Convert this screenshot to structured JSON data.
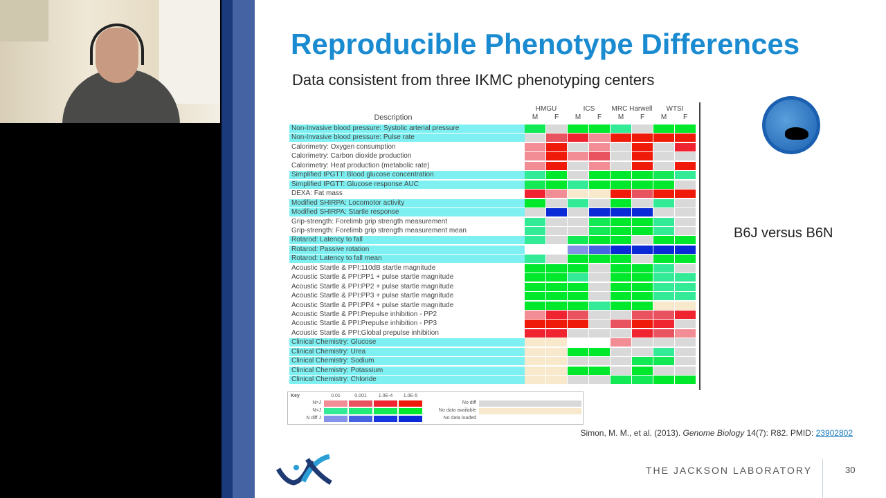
{
  "slide": {
    "title": "Reproducible Phenotype Differences",
    "subtitle": "Data consistent from three IKMC phenotyping centers",
    "side_label": "B6J versus B6N",
    "citation_prefix": "Simon, M. M., et al. (2013). ",
    "citation_journal": "Genome Biology",
    "citation_suffix": " 14(7): R82. PMID: ",
    "pmid_link": "23902802",
    "org": "THE JACKSON LABORATORY",
    "page_number": "30"
  },
  "chart_data": {
    "type": "heatmap",
    "row_header": "Description",
    "centers": [
      "HMGU",
      "ICS",
      "MRC Harwell",
      "WTSI"
    ],
    "columns": [
      "M",
      "F",
      "M",
      "F",
      "M",
      "F",
      "M",
      "F"
    ],
    "rows": [
      {
        "label": "Non-Invasive blood pressure: Systolic arterial pressure",
        "hl": true,
        "cells": [
          "g3",
          "n",
          "g4",
          "g4",
          "g1",
          "n",
          "g4",
          "g4"
        ]
      },
      {
        "label": "Non-Invasive blood pressure: Pulse rate",
        "hl": true,
        "cells": [
          "n",
          "r2",
          "r3",
          "r1",
          "r4",
          "r4",
          "r4",
          "r4"
        ]
      },
      {
        "label": "Calorimetry: Oxygen consumption",
        "hl": false,
        "cells": [
          "r1",
          "r4",
          "n",
          "r1",
          "n",
          "r4",
          "n",
          "r3"
        ]
      },
      {
        "label": "Calorimetry: Carbon dioxide production",
        "hl": false,
        "cells": [
          "r1",
          "r4",
          "r1",
          "r2",
          "n",
          "r4",
          "n",
          "n"
        ]
      },
      {
        "label": "Calorimetry: Heat production (metabolic rate)",
        "hl": false,
        "cells": [
          "r1",
          "r4",
          "n",
          "r1",
          "n",
          "r4",
          "n",
          "r4"
        ]
      },
      {
        "label": "Simplified IPGTT: Blood glucose concentration",
        "hl": true,
        "cells": [
          "g1",
          "g4",
          "n",
          "g4",
          "g4",
          "g4",
          "g3",
          "g1"
        ]
      },
      {
        "label": "Simplified IPGTT: Glucose response AUC",
        "hl": true,
        "cells": [
          "g3",
          "g4",
          "g1",
          "g4",
          "g4",
          "g4",
          "g4",
          "n"
        ]
      },
      {
        "label": "DEXA: Fat mass",
        "hl": false,
        "cells": [
          "r3",
          "r1",
          "y",
          "y",
          "r4",
          "r2",
          "r4",
          "r4"
        ]
      },
      {
        "label": "Modified SHIRPA: Locomotor activity",
        "hl": true,
        "cells": [
          "g4",
          "n",
          "g1",
          "n",
          "g4",
          "n",
          "g1",
          "n"
        ]
      },
      {
        "label": "Modified SHIRPA: Startle response",
        "hl": true,
        "cells": [
          "n",
          "b4",
          "n",
          "b4",
          "b4",
          "b4",
          "n",
          "n"
        ]
      },
      {
        "label": "Grip-strength: Forelimb grip strength measurement",
        "hl": false,
        "cells": [
          "g1",
          "n",
          "n",
          "g3",
          "g4",
          "g4",
          "g1",
          "n"
        ]
      },
      {
        "label": "Grip-strength: Forelimb grip strength measurement mean",
        "hl": false,
        "cells": [
          "g1",
          "n",
          "n",
          "g3",
          "g4",
          "g4",
          "g1",
          "n"
        ]
      },
      {
        "label": "Rotarod: Latency to fall",
        "hl": true,
        "cells": [
          "g1",
          "n",
          "g3",
          "g4",
          "g4",
          "n",
          "g4",
          "g4"
        ]
      },
      {
        "label": "Rotarod: Passive rotation",
        "hl": true,
        "cells": [
          "w",
          "w",
          "b1",
          "b2",
          "b4",
          "b4",
          "b4",
          "b4"
        ]
      },
      {
        "label": "Rotarod: Latency to fall mean",
        "hl": true,
        "cells": [
          "g1",
          "n",
          "g4",
          "g4",
          "g4",
          "n",
          "g4",
          "g4"
        ]
      },
      {
        "label": "Acoustic Startle & PPI:110dB startle magnitude",
        "hl": false,
        "cells": [
          "g4",
          "g4",
          "g4",
          "n",
          "g4",
          "g4",
          "g1",
          "n"
        ]
      },
      {
        "label": "Acoustic Startle & PPI:PP1 + pulse startle magnitude",
        "hl": false,
        "cells": [
          "g4",
          "g4",
          "g1",
          "n",
          "g4",
          "g4",
          "g1",
          "g1"
        ]
      },
      {
        "label": "Acoustic Startle & PPI:PP2 + pulse startle magnitude",
        "hl": false,
        "cells": [
          "g4",
          "g4",
          "g4",
          "n",
          "g4",
          "g4",
          "g1",
          "g1"
        ]
      },
      {
        "label": "Acoustic Startle & PPI:PP3 + pulse startle magnitude",
        "hl": false,
        "cells": [
          "g4",
          "g4",
          "g4",
          "n",
          "g4",
          "g4",
          "g1",
          "g1"
        ]
      },
      {
        "label": "Acoustic Startle & PPI:PP4 + pulse startle magnitude",
        "hl": false,
        "cells": [
          "g4",
          "g4",
          "g4",
          "g1",
          "g4",
          "g4",
          "y",
          "y"
        ]
      },
      {
        "label": "Acoustic Startle & PPI:Prepulse inhibition - PP2",
        "hl": false,
        "cells": [
          "r1",
          "r3",
          "r2",
          "n",
          "n",
          "r2",
          "r2",
          "r3"
        ]
      },
      {
        "label": "Acoustic Startle & PPI:Prepulse inhibition - PP3",
        "hl": false,
        "cells": [
          "r4",
          "r4",
          "r4",
          "n",
          "r2",
          "r4",
          "r3",
          "n"
        ]
      },
      {
        "label": "Acoustic Startle & PPI:Global prepulse inhibition",
        "hl": false,
        "cells": [
          "r3",
          "r3",
          "n",
          "n",
          "n",
          "r3",
          "r2",
          "r1"
        ]
      },
      {
        "label": "Clinical Chemistry: Glucose",
        "hl": true,
        "cells": [
          "y",
          "y",
          "w",
          "w",
          "r1",
          "n",
          "n",
          "n"
        ]
      },
      {
        "label": "Clinical Chemistry: Urea",
        "hl": true,
        "cells": [
          "y",
          "y",
          "g4",
          "g4",
          "n",
          "n",
          "g1",
          "n"
        ]
      },
      {
        "label": "Clinical Chemistry: Sodium",
        "hl": true,
        "cells": [
          "y",
          "y",
          "n",
          "n",
          "n",
          "g3",
          "g3",
          "n"
        ]
      },
      {
        "label": "Clinical Chemistry: Potassium",
        "hl": true,
        "cells": [
          "y",
          "y",
          "g4",
          "g4",
          "n",
          "g4",
          "n",
          "n"
        ]
      },
      {
        "label": "Clinical Chemistry: Chloride",
        "hl": true,
        "cells": [
          "y",
          "y",
          "n",
          "n",
          "g3",
          "g3",
          "g4",
          "g4"
        ]
      }
    ],
    "colors": {
      "r1": "#f38d95",
      "r2": "#e9525f",
      "r3": "#ef2430",
      "r4": "#f01a0a",
      "g1": "#33eb96",
      "g2": "#22ea78",
      "g3": "#12e955",
      "g4": "#00e82c",
      "b1": "#8493e8",
      "b2": "#4664e2",
      "b3": "#1536e0",
      "b4": "#0a2ad8",
      "n": "#d9d9d9",
      "y": "#f8e9cc",
      "w": "#ffffff"
    },
    "key": {
      "title": "Key",
      "pvalues": [
        "0.01",
        "0.001",
        "1.0E-4",
        "1.0E-5"
      ],
      "row_labels": [
        "N>J",
        "N<J",
        "N diff J"
      ],
      "row_codes": [
        [
          "r1",
          "r2",
          "r3",
          "r4"
        ],
        [
          "g1",
          "g2",
          "g3",
          "g4"
        ],
        [
          "b1",
          "b2",
          "b3",
          "b4"
        ]
      ],
      "status": [
        {
          "label": "No diff",
          "code": "n"
        },
        {
          "label": "No data available",
          "code": "y"
        },
        {
          "label": "No data loaded",
          "code": "w"
        }
      ]
    }
  }
}
